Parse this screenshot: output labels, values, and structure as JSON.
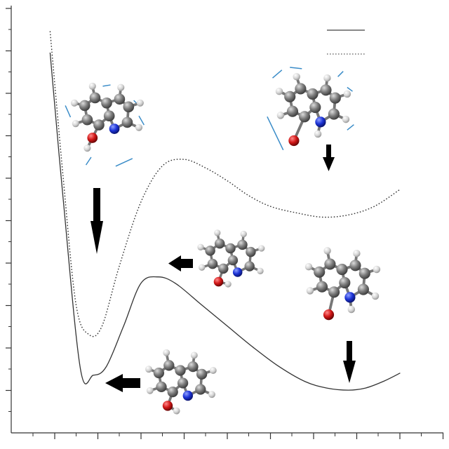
{
  "chart_data": {
    "type": "line",
    "title": "",
    "xlabel": "",
    "ylabel": "",
    "xlim": [
      0,
      10
    ],
    "ylim": [
      0,
      10
    ],
    "grid": false,
    "legend_position": "top-right",
    "series": [
      {
        "style": "solid",
        "color": "#333333",
        "x": [
          0.9,
          1.2,
          1.6,
          1.9,
          2.2,
          2.6,
          3.0,
          3.4,
          3.8,
          4.4,
          5.0,
          5.6,
          6.2,
          6.8,
          7.3,
          7.8,
          8.2,
          8.6,
          9.0
        ],
        "y": [
          8.9,
          5.5,
          1.5,
          1.35,
          1.55,
          2.5,
          3.5,
          3.65,
          3.5,
          3.0,
          2.5,
          2.0,
          1.55,
          1.2,
          1.05,
          1.0,
          1.05,
          1.2,
          1.4
        ]
      },
      {
        "style": "dotted",
        "color": "#333333",
        "x": [
          0.9,
          1.2,
          1.5,
          1.8,
          2.1,
          2.5,
          3.0,
          3.5,
          4.0,
          4.5,
          5.0,
          5.5,
          6.0,
          6.6,
          7.2,
          7.8,
          8.4,
          9.0
        ],
        "y": [
          9.4,
          6.0,
          3.0,
          2.3,
          2.5,
          3.9,
          5.4,
          6.25,
          6.4,
          6.2,
          5.9,
          5.55,
          5.3,
          5.15,
          5.05,
          5.1,
          5.3,
          5.7
        ]
      }
    ]
  }
}
